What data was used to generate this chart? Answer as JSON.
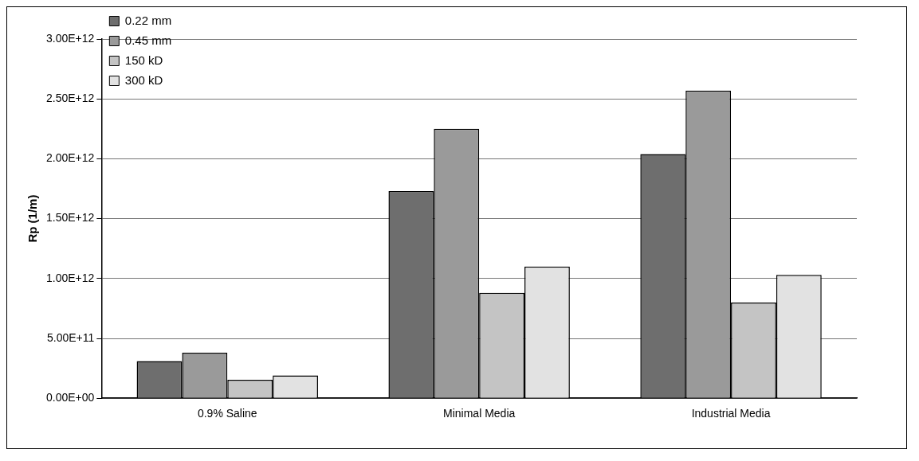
{
  "chart_data": {
    "type": "bar",
    "ylabel": "Rp (1/m)",
    "categories": [
      "0.9% Saline",
      "Minimal Media",
      "Industrial Media"
    ],
    "series": [
      {
        "name": "0.22 mm",
        "color": "#6e6e6e",
        "values": [
          310000000000.0,
          1730000000000.0,
          2040000000000.0
        ]
      },
      {
        "name": "0.45 mm",
        "color": "#9a9a9a",
        "values": [
          380000000000.0,
          2250000000000.0,
          2570000000000.0
        ]
      },
      {
        "name": "150 kD",
        "color": "#c4c4c4",
        "values": [
          155000000000.0,
          880000000000.0,
          800000000000.0
        ]
      },
      {
        "name": "300 kD",
        "color": "#e2e2e2",
        "values": [
          190000000000.0,
          1100000000000.0,
          1030000000000.0
        ]
      }
    ],
    "ylim": [
      0,
      3000000000000.0
    ],
    "yticks": [
      {
        "value": 0,
        "label": "0.00E+00"
      },
      {
        "value": 500000000000.0,
        "label": "5.00E+11"
      },
      {
        "value": 1000000000000.0,
        "label": "1.00E+12"
      },
      {
        "value": 1500000000000.0,
        "label": "1.50E+12"
      },
      {
        "value": 2000000000000.0,
        "label": "2.00E+12"
      },
      {
        "value": 2500000000000.0,
        "label": "2.50E+12"
      },
      {
        "value": 3000000000000.0,
        "label": "3.00E+12"
      }
    ],
    "grid": "y",
    "legend": "top left"
  }
}
